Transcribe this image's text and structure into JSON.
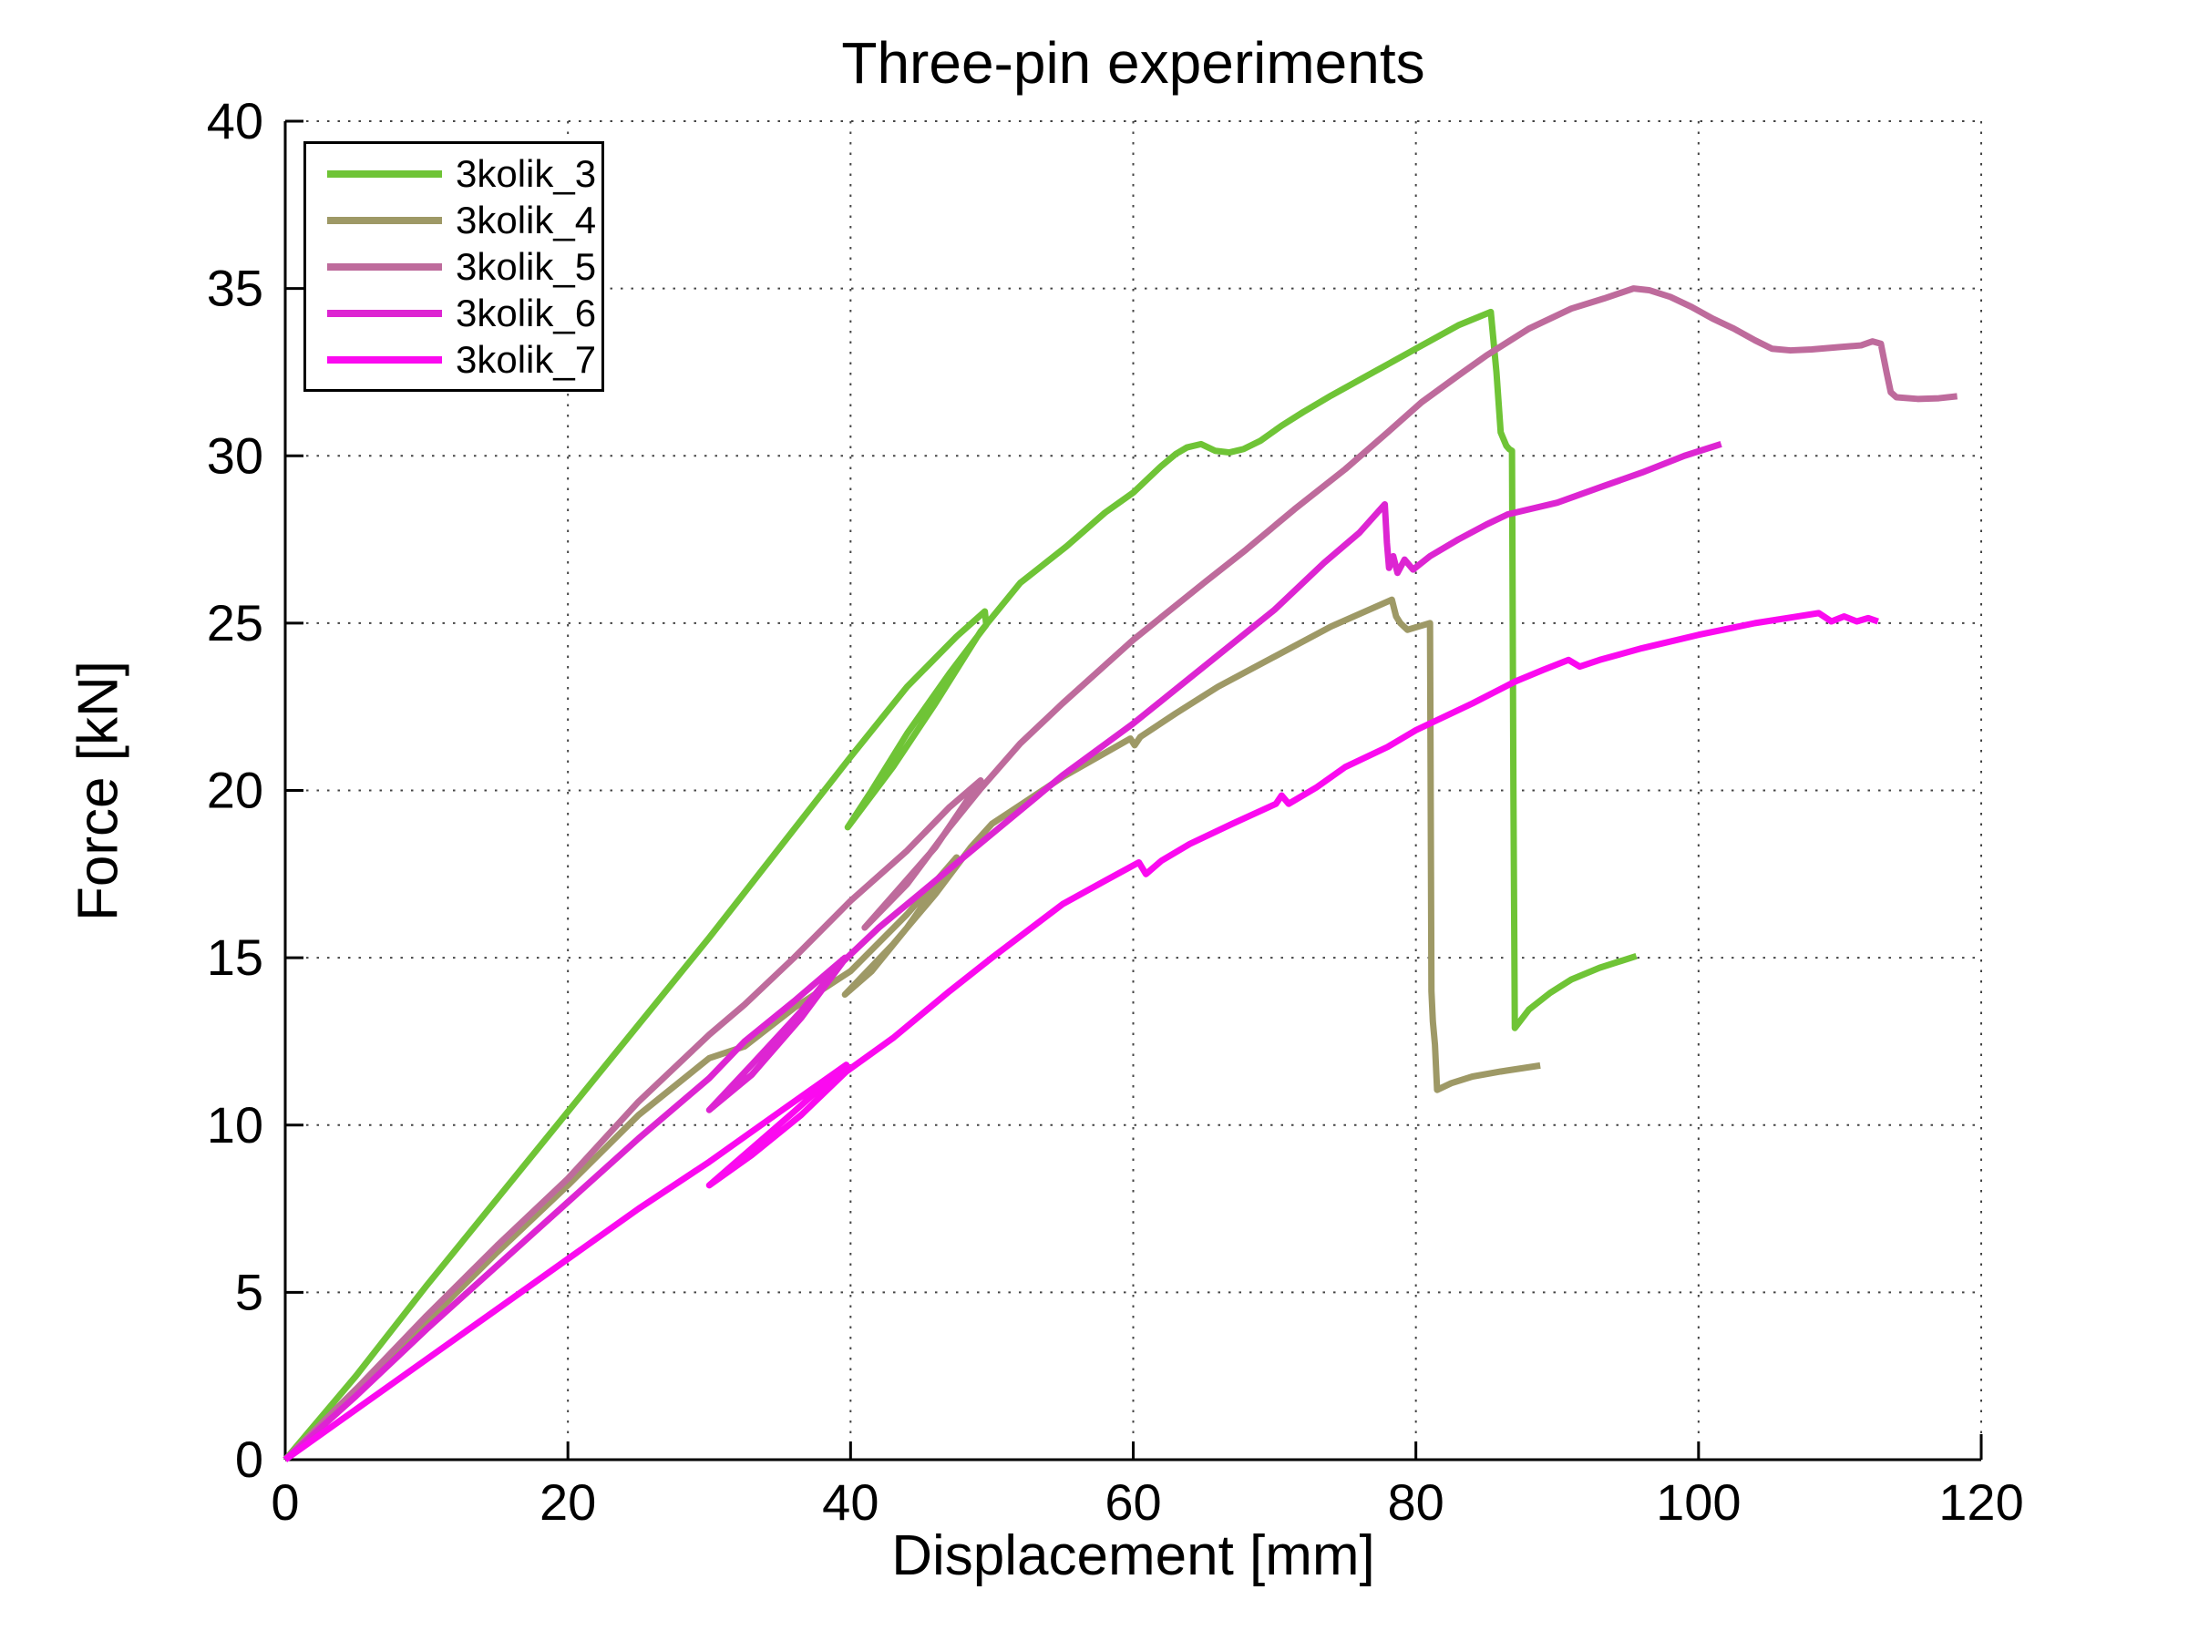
{
  "figure": {
    "title": "Three-pin experiments"
  },
  "chart_data": {
    "type": "line",
    "title": "Three-pin experiments",
    "xlabel": "Displacement [mm]",
    "ylabel": "Force [kN]",
    "xlim": [
      0,
      120
    ],
    "ylim": [
      0,
      40
    ],
    "x_ticks": [
      0,
      20,
      40,
      60,
      80,
      100,
      120
    ],
    "y_ticks": [
      0,
      5,
      10,
      15,
      20,
      25,
      30,
      35,
      40
    ],
    "grid": "dotted",
    "grid_color": "#444444",
    "axis_color": "#000000",
    "legend_position": "top-left",
    "line_width": 7,
    "series": [
      {
        "name": "3kolik_3",
        "color": "#6FC436",
        "points": [
          [
            0,
            0
          ],
          [
            5,
            2.5
          ],
          [
            10,
            5.2
          ],
          [
            15,
            7.8
          ],
          [
            20,
            10.4
          ],
          [
            25,
            13.0
          ],
          [
            30,
            15.6
          ],
          [
            35,
            18.3
          ],
          [
            40,
            21.0
          ],
          [
            44,
            23.1
          ],
          [
            47.5,
            24.6
          ],
          [
            49.5,
            25.35
          ],
          [
            49.6,
            24.95
          ],
          [
            47,
            23.5
          ],
          [
            44,
            21.7
          ],
          [
            41.5,
            20.0
          ],
          [
            39.8,
            18.9
          ],
          [
            43,
            20.7
          ],
          [
            46,
            22.6
          ],
          [
            49.2,
            24.75
          ],
          [
            52,
            26.2
          ],
          [
            55.3,
            27.3
          ],
          [
            58,
            28.3
          ],
          [
            60,
            28.9
          ],
          [
            62,
            29.7
          ],
          [
            63,
            30.05
          ],
          [
            63.8,
            30.25
          ],
          [
            64.8,
            30.35
          ],
          [
            65.8,
            30.15
          ],
          [
            66.8,
            30.1
          ],
          [
            67.8,
            30.2
          ],
          [
            69,
            30.45
          ],
          [
            70.5,
            30.9
          ],
          [
            72,
            31.3
          ],
          [
            74,
            31.8
          ],
          [
            77,
            32.5
          ],
          [
            80,
            33.2
          ],
          [
            83,
            33.9
          ],
          [
            85.3,
            34.3
          ],
          [
            85.7,
            32.5
          ],
          [
            86.0,
            30.7
          ],
          [
            86.4,
            30.3
          ],
          [
            86.6,
            30.2
          ],
          [
            86.8,
            30.15
          ],
          [
            86.9,
            20.0
          ],
          [
            87.0,
            12.9
          ],
          [
            88,
            13.45
          ],
          [
            89.5,
            13.95
          ],
          [
            91,
            14.35
          ],
          [
            93,
            14.7
          ],
          [
            95.6,
            15.05
          ]
        ]
      },
      {
        "name": "3kolik_4",
        "color": "#9E9966",
        "points": [
          [
            0,
            0
          ],
          [
            5,
            2.1
          ],
          [
            10,
            4.1
          ],
          [
            15,
            6.2
          ],
          [
            20,
            8.2
          ],
          [
            25,
            10.3
          ],
          [
            30,
            12.0
          ],
          [
            32.5,
            12.35
          ],
          [
            36,
            13.5
          ],
          [
            40,
            14.6
          ],
          [
            44,
            16.3
          ],
          [
            47.5,
            18.0
          ],
          [
            44,
            15.9
          ],
          [
            41.5,
            14.6
          ],
          [
            39.6,
            13.9
          ],
          [
            43,
            15.4
          ],
          [
            46,
            16.9
          ],
          [
            48.5,
            18.3
          ],
          [
            50,
            19.0
          ],
          [
            52.5,
            19.7
          ],
          [
            55,
            20.4
          ],
          [
            57.5,
            21.0
          ],
          [
            59.8,
            21.55
          ],
          [
            60.1,
            21.35
          ],
          [
            60.5,
            21.6
          ],
          [
            63,
            22.3
          ],
          [
            66,
            23.1
          ],
          [
            70,
            24.0
          ],
          [
            74,
            24.9
          ],
          [
            78.3,
            25.7
          ],
          [
            78.6,
            25.2
          ],
          [
            78.9,
            25.0
          ],
          [
            79.4,
            24.8
          ],
          [
            80.2,
            24.9
          ],
          [
            81.0,
            25.0
          ],
          [
            81.1,
            14.0
          ],
          [
            81.2,
            13.1
          ],
          [
            81.35,
            12.4
          ],
          [
            81.5,
            11.05
          ],
          [
            82.5,
            11.25
          ],
          [
            84,
            11.45
          ],
          [
            86,
            11.6
          ],
          [
            88.8,
            11.78
          ]
        ]
      },
      {
        "name": "3kolik_5",
        "color": "#BE6B9C",
        "points": [
          [
            0,
            0
          ],
          [
            5,
            2.1
          ],
          [
            10,
            4.3
          ],
          [
            15,
            6.4
          ],
          [
            20,
            8.4
          ],
          [
            25,
            10.7
          ],
          [
            30,
            12.7
          ],
          [
            32.5,
            13.6
          ],
          [
            36,
            15.0
          ],
          [
            40,
            16.7
          ],
          [
            44,
            18.2
          ],
          [
            47,
            19.5
          ],
          [
            49.2,
            20.3
          ],
          [
            46,
            18.3
          ],
          [
            43.5,
            17.1
          ],
          [
            41,
            15.9
          ],
          [
            44,
            17.2
          ],
          [
            47,
            18.9
          ],
          [
            49.2,
            20.05
          ],
          [
            52,
            21.4
          ],
          [
            55,
            22.6
          ],
          [
            60,
            24.5
          ],
          [
            65,
            26.2
          ],
          [
            68,
            27.2
          ],
          [
            71.4,
            28.4
          ],
          [
            75,
            29.6
          ],
          [
            78,
            30.7
          ],
          [
            80.4,
            31.6
          ],
          [
            83,
            32.4
          ],
          [
            85,
            33.0
          ],
          [
            88,
            33.8
          ],
          [
            91,
            34.4
          ],
          [
            93.3,
            34.7
          ],
          [
            95.4,
            35.0
          ],
          [
            96.5,
            34.95
          ],
          [
            98,
            34.75
          ],
          [
            99.5,
            34.45
          ],
          [
            101,
            34.1
          ],
          [
            102.5,
            33.8
          ],
          [
            104,
            33.45
          ],
          [
            105.2,
            33.2
          ],
          [
            106.5,
            33.15
          ],
          [
            108,
            33.18
          ],
          [
            110,
            33.25
          ],
          [
            111.5,
            33.3
          ],
          [
            112.3,
            33.42
          ],
          [
            112.9,
            33.35
          ],
          [
            113.3,
            32.5
          ],
          [
            113.6,
            31.9
          ],
          [
            114.0,
            31.75
          ],
          [
            115.5,
            31.7
          ],
          [
            117,
            31.72
          ],
          [
            118.3,
            31.78
          ]
        ]
      },
      {
        "name": "3kolik_6",
        "color": "#DD25D2",
        "points": [
          [
            0,
            0
          ],
          [
            5,
            1.9
          ],
          [
            10,
            3.9
          ],
          [
            15,
            5.8
          ],
          [
            20,
            7.7
          ],
          [
            25,
            9.6
          ],
          [
            30,
            11.4
          ],
          [
            32.5,
            12.5
          ],
          [
            36,
            13.7
          ],
          [
            39.6,
            15.0
          ],
          [
            36.5,
            13.4
          ],
          [
            33,
            11.8
          ],
          [
            30,
            10.45
          ],
          [
            33,
            11.5
          ],
          [
            36.5,
            13.2
          ],
          [
            39.5,
            14.9
          ],
          [
            42,
            15.9
          ],
          [
            45,
            16.95
          ],
          [
            50,
            18.7
          ],
          [
            55,
            20.45
          ],
          [
            60,
            22.0
          ],
          [
            65,
            23.7
          ],
          [
            70,
            25.4
          ],
          [
            73.5,
            26.8
          ],
          [
            76,
            27.7
          ],
          [
            77.8,
            28.55
          ],
          [
            77.95,
            27.4
          ],
          [
            78.1,
            26.65
          ],
          [
            78.4,
            27.0
          ],
          [
            78.7,
            26.5
          ],
          [
            79.2,
            26.9
          ],
          [
            79.8,
            26.6
          ],
          [
            81,
            27.0
          ],
          [
            83,
            27.5
          ],
          [
            85,
            27.95
          ],
          [
            86.5,
            28.25
          ],
          [
            88,
            28.4
          ],
          [
            90,
            28.6
          ],
          [
            93.3,
            29.1
          ],
          [
            96,
            29.5
          ],
          [
            99,
            30.0
          ],
          [
            101.6,
            30.35
          ]
        ]
      },
      {
        "name": "3kolik_7",
        "color": "#FB09F0",
        "points": [
          [
            0,
            0
          ],
          [
            5,
            1.5
          ],
          [
            10,
            3.0
          ],
          [
            15,
            4.5
          ],
          [
            20,
            6.0
          ],
          [
            25,
            7.5
          ],
          [
            30,
            8.9
          ],
          [
            35,
            10.4
          ],
          [
            39.7,
            11.8
          ],
          [
            36,
            10.4
          ],
          [
            33,
            9.3
          ],
          [
            30,
            8.2
          ],
          [
            33,
            9.1
          ],
          [
            36.5,
            10.3
          ],
          [
            39.7,
            11.6
          ],
          [
            43,
            12.6
          ],
          [
            47,
            14.0
          ],
          [
            50,
            15.0
          ],
          [
            55,
            16.6
          ],
          [
            58,
            17.3
          ],
          [
            60.4,
            17.85
          ],
          [
            60.9,
            17.5
          ],
          [
            62,
            17.9
          ],
          [
            64,
            18.4
          ],
          [
            67,
            19.0
          ],
          [
            70.1,
            19.6
          ],
          [
            70.5,
            19.85
          ],
          [
            71,
            19.6
          ],
          [
            73,
            20.1
          ],
          [
            75,
            20.7
          ],
          [
            78,
            21.3
          ],
          [
            80,
            21.8
          ],
          [
            84,
            22.6
          ],
          [
            87,
            23.25
          ],
          [
            89,
            23.6
          ],
          [
            90.8,
            23.9
          ],
          [
            91.6,
            23.7
          ],
          [
            93,
            23.9
          ],
          [
            96,
            24.25
          ],
          [
            100,
            24.65
          ],
          [
            104,
            25.0
          ],
          [
            107,
            25.2
          ],
          [
            108.5,
            25.3
          ],
          [
            109.4,
            25.05
          ],
          [
            110.3,
            25.2
          ],
          [
            111.2,
            25.05
          ],
          [
            112.0,
            25.15
          ],
          [
            112.7,
            25.05
          ]
        ]
      }
    ]
  }
}
